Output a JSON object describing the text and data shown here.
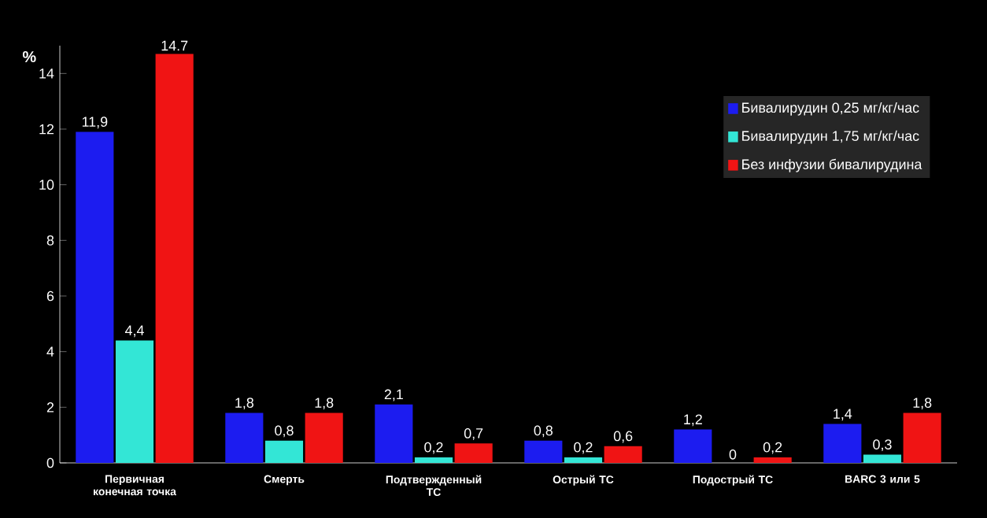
{
  "chart_data": {
    "type": "bar",
    "ylabel": "%",
    "categories": [
      "Первичная конечная точка",
      "Смерть",
      "Подтвержденный ТС",
      "Острый ТС",
      "Подострый ТС",
      "BARC 3 или 5"
    ],
    "series": [
      {
        "name": "Бивалирудин 0,25 мг/кг/час",
        "color": "#1c1cf0",
        "values": [
          11.9,
          1.8,
          2.1,
          0.8,
          1.2,
          1.4
        ],
        "value_labels": [
          "11,9",
          "1,8",
          "2,1",
          "0,8",
          "1,2",
          "1,4"
        ]
      },
      {
        "name": "Бивалирудин 1,75 мг/кг/час",
        "color": "#33e6d6",
        "values": [
          4.4,
          0.8,
          0.2,
          0.2,
          0,
          0.3
        ],
        "value_labels": [
          "4,4",
          "0,8",
          "0,2",
          "0,2",
          "0",
          "0,3"
        ]
      },
      {
        "name": "Без инфузии бивалирудина",
        "color": "#f01414",
        "values": [
          14.7,
          1.8,
          0.7,
          0.6,
          0.2,
          1.8
        ],
        "value_labels": [
          "14.7",
          "1,8",
          "0,7",
          "0,6",
          "0,2",
          "1,8"
        ]
      }
    ],
    "ylim": [
      0,
      15
    ],
    "yticks": [
      0,
      2,
      4,
      6,
      8,
      10,
      12,
      14
    ],
    "legend": "top right",
    "grid": false
  }
}
